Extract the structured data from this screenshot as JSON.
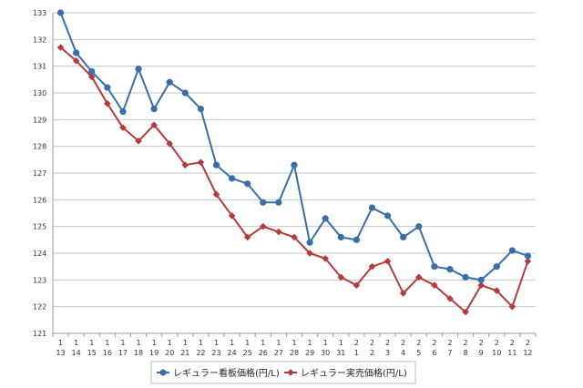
{
  "chart_data": {
    "type": "line",
    "title": "",
    "xlabel": "",
    "ylabel": "",
    "ylim": [
      121,
      133
    ],
    "yticks": [
      121,
      122,
      123,
      124,
      125,
      126,
      127,
      128,
      129,
      130,
      131,
      132,
      133
    ],
    "grid": true,
    "legend_position": "bottom",
    "categories": [
      {
        "top": "1",
        "bottom": "13"
      },
      {
        "top": "1",
        "bottom": "14"
      },
      {
        "top": "1",
        "bottom": "15"
      },
      {
        "top": "1",
        "bottom": "16"
      },
      {
        "top": "1",
        "bottom": "17"
      },
      {
        "top": "1",
        "bottom": "18"
      },
      {
        "top": "1",
        "bottom": "19"
      },
      {
        "top": "1",
        "bottom": "20"
      },
      {
        "top": "1",
        "bottom": "21"
      },
      {
        "top": "1",
        "bottom": "22"
      },
      {
        "top": "1",
        "bottom": "23"
      },
      {
        "top": "1",
        "bottom": "24"
      },
      {
        "top": "1",
        "bottom": "25"
      },
      {
        "top": "1",
        "bottom": "26"
      },
      {
        "top": "1",
        "bottom": "27"
      },
      {
        "top": "1",
        "bottom": "28"
      },
      {
        "top": "1",
        "bottom": "29"
      },
      {
        "top": "1",
        "bottom": "30"
      },
      {
        "top": "1",
        "bottom": "31"
      },
      {
        "top": "2",
        "bottom": "1"
      },
      {
        "top": "2",
        "bottom": "2"
      },
      {
        "top": "2",
        "bottom": "3"
      },
      {
        "top": "2",
        "bottom": "4"
      },
      {
        "top": "2",
        "bottom": "5"
      },
      {
        "top": "2",
        "bottom": "6"
      },
      {
        "top": "2",
        "bottom": "7"
      },
      {
        "top": "2",
        "bottom": "8"
      },
      {
        "top": "2",
        "bottom": "9"
      },
      {
        "top": "2",
        "bottom": "10"
      },
      {
        "top": "2",
        "bottom": "11"
      },
      {
        "top": "2",
        "bottom": "12"
      }
    ],
    "series": [
      {
        "name": "レギュラー看板価格(円/L)",
        "color": "#3a6ea8",
        "marker": "circle",
        "values": [
          133.0,
          131.5,
          130.8,
          130.2,
          129.3,
          130.9,
          129.4,
          130.4,
          130.0,
          129.4,
          127.3,
          126.8,
          126.6,
          125.9,
          125.9,
          127.3,
          124.4,
          125.3,
          124.6,
          124.5,
          125.7,
          125.4,
          124.6,
          125.0,
          123.5,
          123.4,
          123.1,
          123.0,
          123.5,
          124.1,
          123.9
        ]
      },
      {
        "name": "レギュラー実売価格(円/L)",
        "color": "#b33b3b",
        "marker": "diamond",
        "values": [
          131.7,
          131.2,
          130.6,
          129.6,
          128.7,
          128.2,
          128.8,
          128.1,
          127.3,
          127.4,
          126.2,
          125.4,
          124.6,
          125.0,
          124.8,
          124.6,
          124.0,
          123.8,
          123.1,
          122.8,
          123.5,
          123.7,
          122.5,
          123.1,
          122.8,
          122.3,
          121.8,
          122.8,
          122.6,
          122.0,
          123.7
        ]
      }
    ]
  }
}
